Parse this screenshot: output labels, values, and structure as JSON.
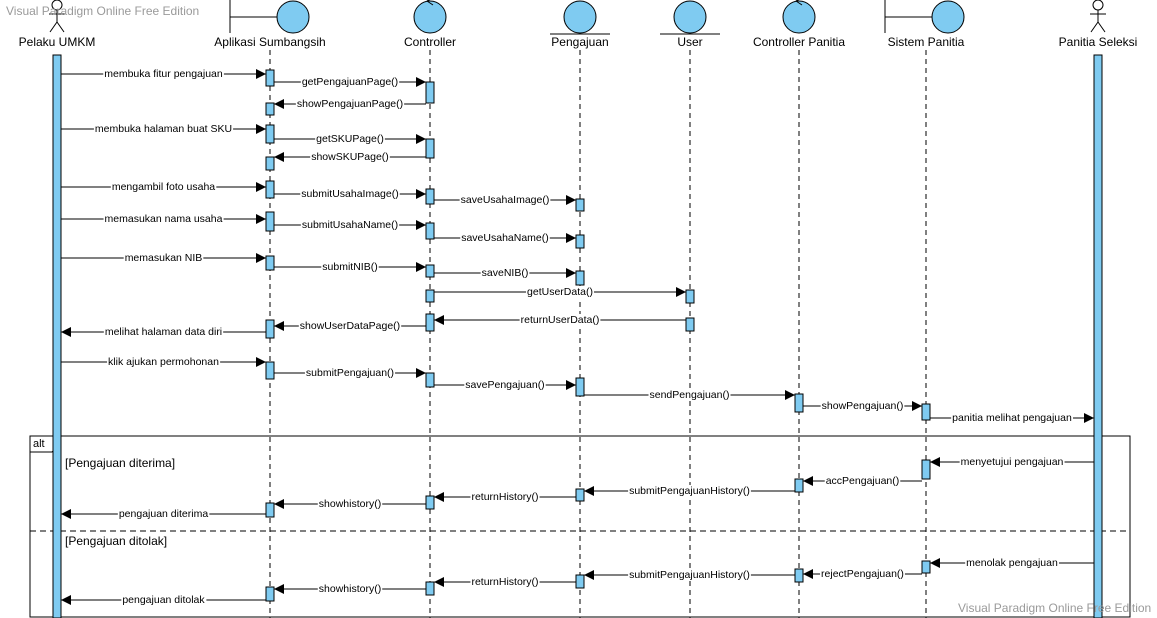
{
  "watermark_top": "Visual Paradigm Online Free Edition",
  "watermark_bottom": "Visual Paradigm Online Free Edition",
  "colors": {
    "fill": "#7fcbf1",
    "stroke": "#000000",
    "frame": "#000000"
  },
  "participants": [
    {
      "id": "pelaku",
      "label": "Pelaku UMKM",
      "kind": "actor"
    },
    {
      "id": "aplikasi",
      "label": "Aplikasi Sumbangsih",
      "kind": "boundary"
    },
    {
      "id": "controller",
      "label": "Controller",
      "kind": "control"
    },
    {
      "id": "pengajuan",
      "label": "Pengajuan",
      "kind": "entity"
    },
    {
      "id": "user",
      "label": "User",
      "kind": "entity"
    },
    {
      "id": "ctrlpanitia",
      "label": "Controller Panitia",
      "kind": "control"
    },
    {
      "id": "sistem",
      "label": "Sistem Panitia",
      "kind": "boundary"
    },
    {
      "id": "panitia",
      "label": "Panitia Seleksi",
      "kind": "actor"
    }
  ],
  "messages": [
    {
      "from": "pelaku",
      "to": "aplikasi",
      "label": "membuka fitur pengajuan"
    },
    {
      "from": "aplikasi",
      "to": "controller",
      "label": "getPengajuanPage()"
    },
    {
      "from": "controller",
      "to": "aplikasi",
      "label": "showPengajuanPage()"
    },
    {
      "from": "pelaku",
      "to": "aplikasi",
      "label": "membuka halaman buat SKU"
    },
    {
      "from": "aplikasi",
      "to": "controller",
      "label": "getSKUPage()"
    },
    {
      "from": "controller",
      "to": "aplikasi",
      "label": "showSKUPage()"
    },
    {
      "from": "pelaku",
      "to": "aplikasi",
      "label": "mengambil foto usaha"
    },
    {
      "from": "aplikasi",
      "to": "controller",
      "label": "submitUsahaImage()"
    },
    {
      "from": "controller",
      "to": "pengajuan",
      "label": "saveUsahaImage()"
    },
    {
      "from": "pelaku",
      "to": "aplikasi",
      "label": "memasukan nama usaha"
    },
    {
      "from": "aplikasi",
      "to": "controller",
      "label": "submitUsahaName()"
    },
    {
      "from": "controller",
      "to": "pengajuan",
      "label": "saveUsahaName()"
    },
    {
      "from": "pelaku",
      "to": "aplikasi",
      "label": "memasukan NIB"
    },
    {
      "from": "aplikasi",
      "to": "controller",
      "label": "submitNIB()"
    },
    {
      "from": "controller",
      "to": "pengajuan",
      "label": "saveNIB()"
    },
    {
      "from": "controller",
      "to": "user",
      "label": "getUserData()"
    },
    {
      "from": "user",
      "to": "controller",
      "label": "returnUserData()"
    },
    {
      "from": "controller",
      "to": "aplikasi",
      "label": "showUserDataPage()"
    },
    {
      "from": "aplikasi",
      "to": "pelaku",
      "label": "melihat halaman data diri"
    },
    {
      "from": "pelaku",
      "to": "aplikasi",
      "label": "klik ajukan permohonan"
    },
    {
      "from": "aplikasi",
      "to": "controller",
      "label": "submitPengajuan()"
    },
    {
      "from": "controller",
      "to": "pengajuan",
      "label": "savePengajuan()"
    },
    {
      "from": "pengajuan",
      "to": "ctrlpanitia",
      "label": "sendPengajuan()"
    },
    {
      "from": "ctrlpanitia",
      "to": "sistem",
      "label": "showPengajuan()"
    },
    {
      "from": "sistem",
      "to": "panitia",
      "label": "panitia melihat pengajuan"
    },
    {
      "from": "panitia",
      "to": "sistem",
      "label": "menyetujui pengajuan"
    },
    {
      "from": "sistem",
      "to": "ctrlpanitia",
      "label": "accPengajuan()"
    },
    {
      "from": "ctrlpanitia",
      "to": "pengajuan",
      "label": "submitPengajuanHistory()"
    },
    {
      "from": "pengajuan",
      "to": "controller",
      "label": "returnHistory()"
    },
    {
      "from": "controller",
      "to": "aplikasi",
      "label": "showhistory()"
    },
    {
      "from": "aplikasi",
      "to": "pelaku",
      "label": "pengajuan diterima"
    },
    {
      "from": "panitia",
      "to": "sistem",
      "label": "menolak pengajuan"
    },
    {
      "from": "sistem",
      "to": "ctrlpanitia",
      "label": "rejectPengajuan()"
    },
    {
      "from": "ctrlpanitia",
      "to": "pengajuan",
      "label": "submitPengajuanHistory()"
    },
    {
      "from": "pengajuan",
      "to": "controller",
      "label": "returnHistory()"
    },
    {
      "from": "controller",
      "to": "aplikasi",
      "label": "showhistory()"
    },
    {
      "from": "aplikasi",
      "to": "pelaku",
      "label": "pengajuan ditolak"
    }
  ],
  "fragment": {
    "operator": "alt",
    "guards": [
      "[Pengajuan diterima]",
      "[Pengajuan ditolak]"
    ]
  }
}
